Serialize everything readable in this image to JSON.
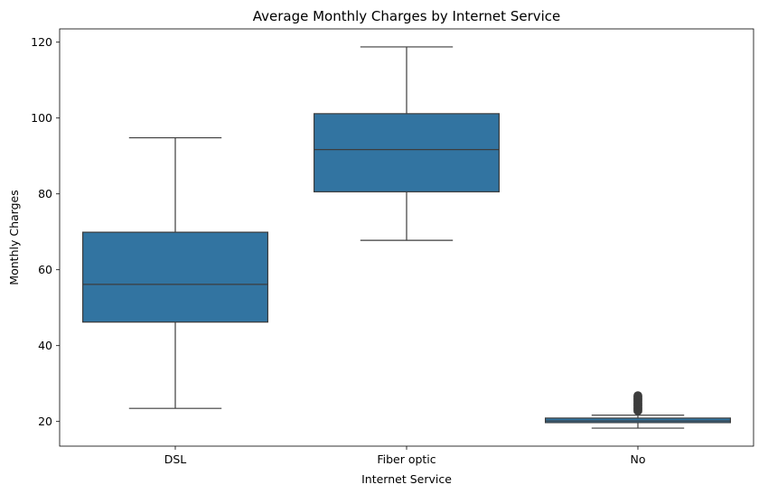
{
  "chart_data": {
    "type": "box",
    "title": "Average Monthly Charges by Internet Service",
    "xlabel": "Internet Service",
    "ylabel": "Monthly Charges",
    "ylim": [
      13.5,
      123.5
    ],
    "yticks": [
      20,
      40,
      60,
      80,
      100,
      120
    ],
    "grid": false,
    "categories": [
      "DSL",
      "Fiber optic",
      "No"
    ],
    "box_color": "#3274a1",
    "line_color": "#3d3d3d",
    "boxes": [
      {
        "category": "DSL",
        "whisker_low": 23.45,
        "q1": 46.2,
        "median": 56.15,
        "q3": 69.9,
        "whisker_high": 94.8,
        "outliers": []
      },
      {
        "category": "Fiber optic",
        "whisker_low": 67.75,
        "q1": 80.55,
        "median": 91.68,
        "q3": 101.15,
        "whisker_high": 118.75,
        "outliers": []
      },
      {
        "category": "No",
        "whisker_low": 18.25,
        "q1": 19.7,
        "median": 20.15,
        "q3": 20.9,
        "whisker_high": 21.65,
        "outliers": [
          22.8,
          23.2,
          23.6,
          24.0,
          24.4,
          24.8,
          25.2,
          25.6,
          26.0,
          26.4,
          26.8
        ]
      }
    ]
  }
}
